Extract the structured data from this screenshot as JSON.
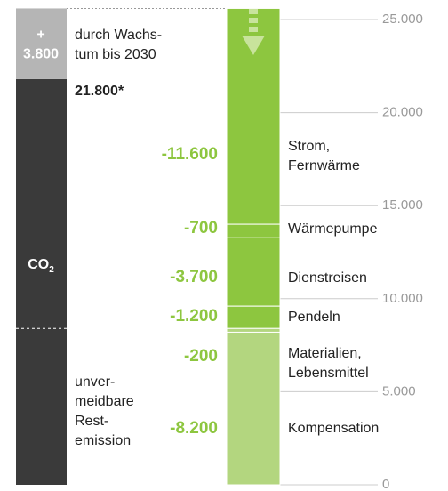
{
  "chart_data": {
    "type": "waterfall",
    "base": {
      "value": 21800,
      "value_label": "21.800*",
      "label": "CO",
      "label_sub": "2",
      "color": "#3a3a3a"
    },
    "growth": {
      "value": 3800,
      "value_label": [
        "+",
        "3.800"
      ],
      "label": [
        "durch Wachs-",
        "tum bis 2030"
      ],
      "color": "#b5b5b5"
    },
    "residual_label": [
      "unver-",
      "meidbare",
      "Rest-",
      "emission"
    ],
    "categories": [
      [
        "Strom,",
        "Fernwärme"
      ],
      [
        "Wärmepumpe"
      ],
      [
        "Dienstreisen"
      ],
      [
        "Pendeln"
      ],
      [
        "Materialien,",
        "Lebensmittel"
      ],
      [
        "Kompensation"
      ]
    ],
    "values": [
      -11600,
      -700,
      -3700,
      -1200,
      -200,
      -8200
    ],
    "value_labels": [
      "-11.600",
      "-700",
      "-3.700",
      "-1.200",
      "-200",
      "-8.200"
    ],
    "colors": [
      "#8dc63f",
      "#8dc63f",
      "#8dc63f",
      "#8dc63f",
      "#b3d67f",
      "#b3d67f"
    ],
    "ylim": [
      0,
      25000
    ],
    "yticks": [
      0,
      {
        "value": 5000,
        "label": "5.000"
      },
      {
        "value": 10000,
        "label": "10.000"
      },
      {
        "value": 15000,
        "label": "15.000"
      },
      {
        "value": 20000,
        "label": "20.000"
      },
      {
        "value": 25000,
        "label": "25.000"
      }
    ],
    "grid": true
  }
}
